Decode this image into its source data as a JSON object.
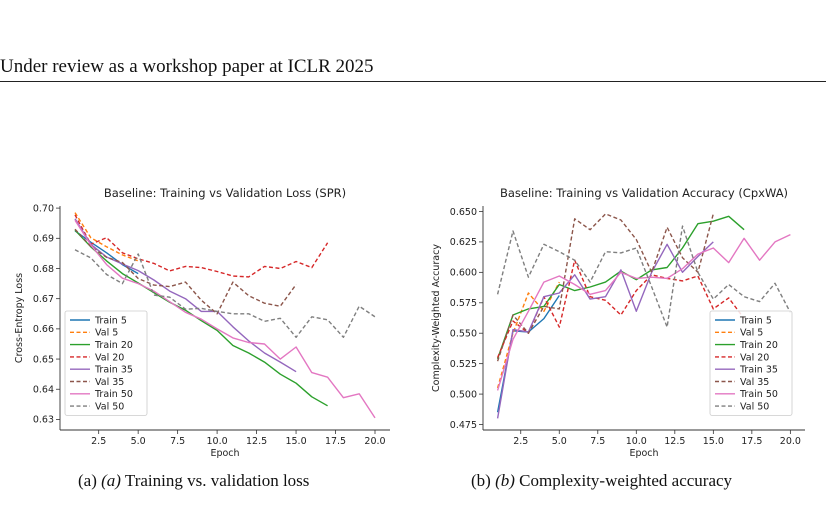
{
  "header": {
    "text": "Under review as a workshop paper at ICLR 2025"
  },
  "figures": [
    {
      "caption_prefix": "(a)",
      "caption_italic": "(a)",
      "caption_text": "Training vs. validation loss"
    },
    {
      "caption_prefix": "(b)",
      "caption_italic": "(b)",
      "caption_text": "Complexity-weighted accuracy"
    }
  ],
  "chart_data": [
    {
      "type": "line",
      "title": "Baseline: Training vs Validation Loss (SPR)",
      "xlabel": "Epoch",
      "ylabel": "Cross-Entropy Loss",
      "xlim": [
        0.05,
        20.95
      ],
      "ylim": [
        0.6265,
        0.7007
      ],
      "xticks": [
        2.5,
        5.0,
        7.5,
        10.0,
        12.5,
        15.0,
        17.5,
        20.0
      ],
      "xtick_labels": [
        "2.5",
        "5.0",
        "7.5",
        "10.0",
        "12.5",
        "15.0",
        "17.5",
        "20.0"
      ],
      "yticks": [
        0.63,
        0.64,
        0.65,
        0.66,
        0.67,
        0.68,
        0.69,
        0.7
      ],
      "ytick_labels": [
        "0.63",
        "0.64",
        "0.65",
        "0.66",
        "0.67",
        "0.68",
        "0.69",
        "0.70"
      ],
      "legend_position": "lower-left",
      "grid": false,
      "series": [
        {
          "name": "Train 5",
          "color": "#1f77b4",
          "dash": "solid",
          "x": [
            1,
            2,
            3,
            4,
            5
          ],
          "y": [
            0.6925,
            0.6887,
            0.6852,
            0.6813,
            0.6783
          ]
        },
        {
          "name": "Val 5",
          "color": "#ff7f0e",
          "dash": "dashed",
          "x": [
            1,
            2,
            3,
            4,
            5
          ],
          "y": [
            0.6985,
            0.6902,
            0.6872,
            0.6845,
            0.6825
          ]
        },
        {
          "name": "Train 20",
          "color": "#2ca02c",
          "dash": "solid",
          "x": [
            1,
            2,
            3,
            4,
            5,
            6,
            7,
            8,
            9,
            10,
            11,
            12,
            13,
            14,
            15,
            16,
            17
          ],
          "y": [
            0.6927,
            0.6872,
            0.6825,
            0.6783,
            0.6752,
            0.672,
            0.6688,
            0.6662,
            0.6627,
            0.6595,
            0.6545,
            0.652,
            0.649,
            0.645,
            0.642,
            0.6375,
            0.6345
          ]
        },
        {
          "name": "Val 20",
          "color": "#d62728",
          "dash": "dashed",
          "x": [
            1,
            2,
            3,
            4,
            5,
            6,
            7,
            8,
            9,
            10,
            11,
            12,
            13,
            14,
            15,
            16,
            17
          ],
          "y": [
            0.6978,
            0.688,
            0.6902,
            0.6852,
            0.6832,
            0.6817,
            0.6792,
            0.6807,
            0.6803,
            0.679,
            0.6775,
            0.6772,
            0.6807,
            0.68,
            0.6823,
            0.6803,
            0.6885
          ]
        },
        {
          "name": "Train 35",
          "color": "#9467bd",
          "dash": "solid",
          "x": [
            1,
            2,
            3,
            4,
            5,
            6,
            7,
            8,
            9,
            10,
            11,
            12,
            13,
            14,
            15
          ],
          "y": [
            0.6965,
            0.688,
            0.6838,
            0.6815,
            0.6793,
            0.6762,
            0.6725,
            0.67,
            0.6658,
            0.6658,
            0.6607,
            0.656,
            0.652,
            0.649,
            0.6458
          ]
        },
        {
          "name": "Val 35",
          "color": "#8c564b",
          "dash": "dashed",
          "x": [
            1,
            2,
            3,
            4,
            5,
            6,
            7,
            8,
            9,
            10,
            11,
            12,
            13,
            14,
            15
          ],
          "y": [
            0.693,
            0.6873,
            0.6837,
            0.682,
            0.6767,
            0.6745,
            0.674,
            0.6755,
            0.6695,
            0.665,
            0.6755,
            0.671,
            0.6685,
            0.6675,
            0.6747
          ]
        },
        {
          "name": "Train 50",
          "color": "#e377c2",
          "dash": "solid",
          "x": [
            1,
            2,
            3,
            4,
            5,
            6,
            7,
            8,
            9,
            10,
            11,
            12,
            13,
            14,
            15,
            16,
            17,
            18,
            19,
            20
          ],
          "y": [
            0.696,
            0.6878,
            0.6813,
            0.6768,
            0.675,
            0.6725,
            0.669,
            0.6655,
            0.6632,
            0.66,
            0.657,
            0.6555,
            0.655,
            0.65,
            0.654,
            0.6455,
            0.644,
            0.6372,
            0.6385,
            0.6305
          ]
        },
        {
          "name": "Val 50",
          "color": "#7f7f7f",
          "dash": "dashed",
          "x": [
            1,
            2,
            3,
            4,
            5,
            6,
            7,
            8,
            9,
            10,
            11,
            12,
            13,
            14,
            15,
            16,
            17,
            18,
            19,
            20
          ],
          "y": [
            0.6862,
            0.6835,
            0.678,
            0.675,
            0.6848,
            0.6712,
            0.6705,
            0.6665,
            0.6668,
            0.6658,
            0.665,
            0.665,
            0.6625,
            0.6635,
            0.6572,
            0.664,
            0.663,
            0.6572,
            0.6675,
            0.664
          ]
        }
      ]
    },
    {
      "type": "line",
      "title": "Baseline: Training vs Validation Accuracy (CpxWA)",
      "xlabel": "Epoch",
      "ylabel": "Complexity-Weighted Accuracy",
      "xlim": [
        0.05,
        20.95
      ],
      "ylim": [
        0.4705,
        0.6545
      ],
      "xticks": [
        2.5,
        5.0,
        7.5,
        10.0,
        12.5,
        15.0,
        17.5,
        20.0
      ],
      "xtick_labels": [
        "2.5",
        "5.0",
        "7.5",
        "10.0",
        "12.5",
        "15.0",
        "17.5",
        "20.0"
      ],
      "yticks": [
        0.475,
        0.5,
        0.525,
        0.55,
        0.575,
        0.6,
        0.625,
        0.65
      ],
      "ytick_labels": [
        "0.475",
        "0.500",
        "0.525",
        "0.550",
        "0.575",
        "0.600",
        "0.625",
        "0.650"
      ],
      "legend_position": "lower-right",
      "grid": false,
      "series": [
        {
          "name": "Train 5",
          "color": "#1f77b4",
          "dash": "solid",
          "x": [
            1,
            2,
            3,
            4,
            5
          ],
          "y": [
            0.485,
            0.552,
            0.551,
            0.562,
            0.581
          ]
        },
        {
          "name": "Val 5",
          "color": "#ff7f0e",
          "dash": "dashed",
          "x": [
            1,
            2,
            3,
            4,
            5
          ],
          "y": [
            0.505,
            0.55,
            0.583,
            0.568,
            0.592
          ]
        },
        {
          "name": "Train 20",
          "color": "#2ca02c",
          "dash": "solid",
          "x": [
            1,
            2,
            3,
            4,
            5,
            6,
            7,
            8,
            9,
            10,
            11,
            12,
            13,
            14,
            15,
            16,
            17
          ],
          "y": [
            0.529,
            0.565,
            0.57,
            0.572,
            0.59,
            0.585,
            0.588,
            0.592,
            0.601,
            0.594,
            0.602,
            0.604,
            0.62,
            0.64,
            0.642,
            0.646,
            0.635
          ]
        },
        {
          "name": "Val 20",
          "color": "#d62728",
          "dash": "dashed",
          "x": [
            1,
            2,
            3,
            4,
            5,
            6,
            7,
            8,
            9,
            10,
            11,
            12,
            13,
            14,
            15,
            16,
            17
          ],
          "y": [
            0.53,
            0.56,
            0.55,
            0.58,
            0.555,
            0.61,
            0.58,
            0.577,
            0.565,
            0.585,
            0.598,
            0.595,
            0.593,
            0.597,
            0.57,
            0.579,
            0.562
          ]
        },
        {
          "name": "Train 35",
          "color": "#9467bd",
          "dash": "solid",
          "x": [
            1,
            2,
            3,
            4,
            5,
            6,
            7,
            8,
            9,
            10,
            11,
            12,
            13,
            14,
            15
          ],
          "y": [
            0.48,
            0.553,
            0.551,
            0.58,
            0.583,
            0.598,
            0.578,
            0.58,
            0.602,
            0.568,
            0.6,
            0.623,
            0.6,
            0.613,
            0.625
          ]
        },
        {
          "name": "Val 35",
          "color": "#8c564b",
          "dash": "dashed",
          "x": [
            1,
            2,
            3,
            4,
            5,
            6,
            7,
            8,
            9,
            10,
            11,
            12,
            13,
            14,
            15
          ],
          "y": [
            0.527,
            0.565,
            0.55,
            0.572,
            0.57,
            0.644,
            0.635,
            0.648,
            0.643,
            0.627,
            0.6,
            0.637,
            0.612,
            0.6,
            0.648
          ]
        },
        {
          "name": "Train 50",
          "color": "#e377c2",
          "dash": "solid",
          "x": [
            1,
            2,
            3,
            4,
            5,
            6,
            7,
            8,
            9,
            10,
            11,
            12,
            13,
            14,
            15,
            16,
            17,
            18,
            19,
            20
          ],
          "y": [
            0.503,
            0.545,
            0.568,
            0.592,
            0.597,
            0.59,
            0.582,
            0.585,
            0.6,
            0.595,
            0.596,
            0.595,
            0.603,
            0.615,
            0.62,
            0.608,
            0.628,
            0.61,
            0.625,
            0.631
          ]
        },
        {
          "name": "Val 50",
          "color": "#7f7f7f",
          "dash": "dashed",
          "x": [
            1,
            2,
            3,
            4,
            5,
            6,
            7,
            8,
            9,
            10,
            11,
            12,
            13,
            14,
            15,
            16,
            17,
            18,
            19,
            20
          ],
          "y": [
            0.582,
            0.634,
            0.596,
            0.623,
            0.617,
            0.61,
            0.592,
            0.617,
            0.616,
            0.62,
            0.588,
            0.555,
            0.638,
            0.6,
            0.578,
            0.59,
            0.58,
            0.576,
            0.591,
            0.567
          ]
        }
      ]
    }
  ]
}
